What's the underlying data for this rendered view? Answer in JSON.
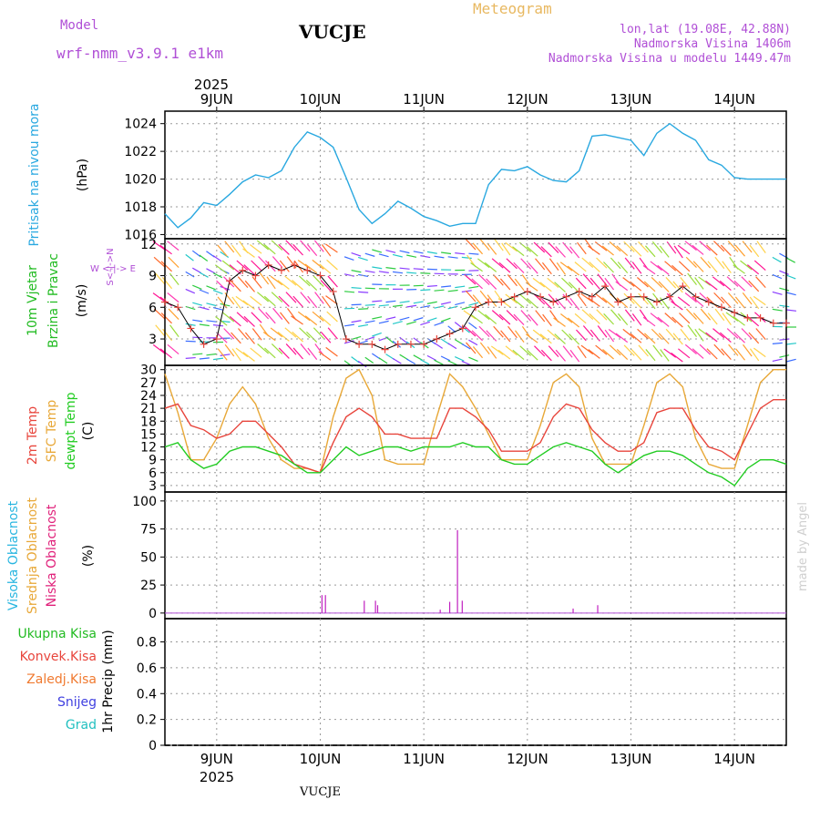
{
  "header": {
    "model_label": "Model",
    "model_name": "wrf-nmm_v3.9.1 e1km",
    "station": "VUCJE",
    "product": "Meteogram",
    "coords": "lon,lat (19.08E, 42.88N)",
    "altitude": "Nadmorska Visina 1406m",
    "model_altitude": "Nadmorska Visina u modelu 1449.47m",
    "footer_station": "VUCJE",
    "watermark": "made by Angel"
  },
  "colors": {
    "pressure": "#29a8e0",
    "wind_label": "#22bb22",
    "temp2m": "#e8453c",
    "sfc": "#e8a838",
    "dewpt": "#22cc22",
    "high_cloud": "#29b6e0",
    "mid_cloud": "#e8a838",
    "low_cloud": "#e0207a",
    "purple": "#b04fd6",
    "precip_total": "#22bb22",
    "precip_conv": "#e8453c",
    "precip_frz": "#f07a30",
    "snow": "#4040e0",
    "graupel": "#22c0c0"
  },
  "panel_labels": {
    "pressure": [
      "Pritisak na nivou mora",
      "(hPa)"
    ],
    "wind": [
      "10m Vjetar",
      "Brzina i Pravac",
      "(m/s)"
    ],
    "wind_compass": [
      "W <-|-> E",
      "S<-|->N"
    ],
    "temp": [
      "2m Temp",
      "SFC Temp",
      "dewpt Temp",
      "(C)"
    ],
    "cloud": [
      "Visoka Oblacnost",
      "Srednja Oblacnost",
      "Niska Oblacnost",
      "(%)"
    ],
    "precip_legend": [
      "Ukupna Kisa",
      "Konvek.Kisa",
      "Zaledj.Kisa",
      "Snijeg",
      "Grad"
    ],
    "precip_unit": "1hr Precip (mm)"
  },
  "chart_data": [
    {
      "type": "line",
      "name": "pressure",
      "x_start": "2025-06-08 12:00",
      "x_end": "2025-06-14 12:00",
      "year_label": "2025",
      "day_ticks": [
        "9JUN",
        "10JUN",
        "11JUN",
        "12JUN",
        "13JUN",
        "14JUN"
      ],
      "ylabel": "(hPa)",
      "ylim": [
        1015.7,
        1024.9
      ],
      "yticks": [
        1016,
        1018,
        1020,
        1022,
        1024
      ],
      "series": [
        {
          "x_hours": [
            0,
            3,
            6,
            9,
            12,
            15,
            18,
            21,
            24,
            27,
            30,
            33,
            36,
            39,
            42,
            45,
            48,
            51,
            54,
            57,
            60,
            63,
            66,
            69,
            72,
            75,
            78,
            81,
            84,
            87,
            90,
            93,
            96,
            99,
            102,
            105,
            108,
            111,
            114,
            117,
            120,
            123,
            126,
            129,
            132,
            135,
            138,
            141,
            144
          ],
          "values": [
            1017.5,
            1016.5,
            1017.2,
            1018.3,
            1018.1,
            1018.9,
            1019.8,
            1020.3,
            1020.1,
            1020.6,
            1022.3,
            1023.4,
            1023.0,
            1022.3,
            1020.1,
            1017.8,
            1016.8,
            1017.5,
            1018.4,
            1017.9,
            1017.3,
            1017.0,
            1016.6,
            1016.8,
            1016.8,
            1019.6,
            1020.7,
            1020.6,
            1020.9,
            1020.3,
            1019.9,
            1019.8,
            1020.6,
            1023.1,
            1023.2,
            1023.0,
            1022.8,
            1021.7,
            1023.3,
            1024.0,
            1023.3,
            1022.8,
            1021.4,
            1021.0,
            1020.1,
            1020.0,
            1020.0,
            1020.0,
            1020.0
          ]
        }
      ]
    },
    {
      "type": "line",
      "name": "wind",
      "ylabel": "(m/s)",
      "ylim": [
        0.5,
        12.5
      ],
      "yticks": [
        3,
        6,
        9,
        12
      ],
      "series": [
        {
          "name": "wind speed",
          "x_hours": [
            0,
            3,
            6,
            9,
            12,
            15,
            18,
            21,
            24,
            27,
            30,
            33,
            36,
            39,
            42,
            45,
            48,
            51,
            54,
            57,
            60,
            63,
            66,
            69,
            72,
            75,
            78,
            81,
            84,
            87,
            90,
            93,
            96,
            99,
            102,
            105,
            108,
            111,
            114,
            117,
            120,
            123,
            126,
            129,
            132,
            135,
            138,
            141,
            144
          ],
          "values": [
            6.5,
            6.0,
            4.0,
            2.5,
            3.0,
            8.5,
            9.5,
            9.0,
            10.0,
            9.5,
            10.0,
            9.5,
            9.0,
            7.5,
            3.0,
            2.5,
            2.5,
            2.0,
            2.5,
            2.5,
            2.5,
            3.0,
            3.5,
            4.0,
            6.0,
            6.5,
            6.5,
            7.0,
            7.5,
            7.0,
            6.5,
            7.0,
            7.5,
            7.0,
            8.0,
            6.5,
            7.0,
            7.0,
            6.5,
            7.0,
            8.0,
            7.0,
            6.5,
            6.0,
            5.5,
            5.0,
            5.0,
            4.5,
            4.5
          ]
        }
      ]
    },
    {
      "type": "line",
      "name": "temperature",
      "ylabel": "(C)",
      "ylim": [
        1.5,
        31
      ],
      "yticks": [
        3,
        6,
        9,
        12,
        15,
        18,
        21,
        24,
        27,
        30
      ],
      "series": [
        {
          "name": "2m Temp",
          "x_hours": [
            0,
            3,
            6,
            9,
            12,
            15,
            18,
            21,
            24,
            27,
            30,
            33,
            36,
            39,
            42,
            45,
            48,
            51,
            54,
            57,
            60,
            63,
            66,
            69,
            72,
            75,
            78,
            81,
            84,
            87,
            90,
            93,
            96,
            99,
            102,
            105,
            108,
            111,
            114,
            117,
            120,
            123,
            126,
            129,
            132,
            135,
            138,
            141,
            144
          ],
          "values": [
            21,
            22,
            17,
            16,
            14,
            15,
            18,
            18,
            15,
            12,
            8,
            7,
            6,
            13,
            19,
            21,
            19,
            15,
            15,
            14,
            14,
            14,
            21,
            21,
            19,
            16,
            11,
            11,
            11,
            13,
            19,
            22,
            21,
            16,
            13,
            11,
            11,
            13,
            20,
            21,
            21,
            16,
            12,
            11,
            9,
            15,
            21,
            23,
            23
          ]
        },
        {
          "name": "SFC Temp",
          "x_hours": [
            0,
            3,
            6,
            9,
            12,
            15,
            18,
            21,
            24,
            27,
            30,
            33,
            36,
            39,
            42,
            45,
            48,
            51,
            54,
            57,
            60,
            63,
            66,
            69,
            72,
            75,
            78,
            81,
            84,
            87,
            90,
            93,
            96,
            99,
            102,
            105,
            108,
            111,
            114,
            117,
            120,
            123,
            126,
            129,
            132,
            135,
            138,
            141,
            144
          ],
          "values": [
            29,
            20,
            9,
            9,
            14,
            22,
            26,
            22,
            14,
            9,
            7,
            7,
            6,
            19,
            28,
            30,
            24,
            9,
            8,
            8,
            8,
            19,
            29,
            26,
            21,
            15,
            9,
            9,
            9,
            17,
            27,
            29,
            26,
            14,
            8,
            8,
            8,
            17,
            27,
            29,
            26,
            14,
            8,
            7,
            7,
            17,
            27,
            30,
            30
          ]
        },
        {
          "name": "dewpt Temp",
          "x_hours": [
            0,
            3,
            6,
            9,
            12,
            15,
            18,
            21,
            24,
            27,
            30,
            33,
            36,
            39,
            42,
            45,
            48,
            51,
            54,
            57,
            60,
            63,
            66,
            69,
            72,
            75,
            78,
            81,
            84,
            87,
            90,
            93,
            96,
            99,
            102,
            105,
            108,
            111,
            114,
            117,
            120,
            123,
            126,
            129,
            132,
            135,
            138,
            141,
            144
          ],
          "values": [
            12,
            13,
            9,
            7,
            8,
            11,
            12,
            12,
            11,
            10,
            8,
            6,
            6,
            9,
            12,
            10,
            11,
            12,
            12,
            11,
            12,
            12,
            12,
            13,
            12,
            12,
            9,
            8,
            8,
            10,
            12,
            13,
            12,
            11,
            8,
            6,
            8,
            10,
            11,
            11,
            10,
            8,
            6,
            5,
            3,
            7,
            9,
            9,
            8
          ]
        }
      ]
    },
    {
      "type": "bar",
      "name": "cloud cover",
      "ylabel": "(%)",
      "ylim": [
        -5,
        108
      ],
      "yticks": [
        0,
        25,
        50,
        75,
        100
      ],
      "series": [
        {
          "name": "low cloud",
          "x_hours": [
            36.4,
            37.2,
            46.2,
            48.8,
            49.3,
            63.8,
            66.0,
            67.8,
            68.9,
            94.6,
            100.3
          ],
          "values": [
            16,
            16,
            11,
            11,
            7,
            3,
            10,
            74,
            11,
            4,
            7
          ]
        }
      ]
    },
    {
      "type": "line",
      "name": "precipitation",
      "ylabel": "1hr Precip (mm)",
      "ylim": [
        0,
        0.98
      ],
      "yticks": [
        0,
        0.2,
        0.4,
        0.6,
        0.8
      ],
      "series": [
        {
          "name": "total rain",
          "x_hours": [
            0,
            144
          ],
          "values": [
            0,
            0
          ]
        }
      ]
    }
  ]
}
